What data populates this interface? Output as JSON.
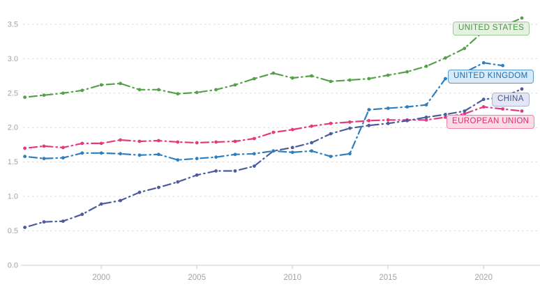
{
  "chart_data": {
    "type": "line",
    "x": [
      1996,
      1997,
      1998,
      1999,
      2000,
      2001,
      2002,
      2003,
      2004,
      2005,
      2006,
      2007,
      2008,
      2009,
      2010,
      2011,
      2012,
      2013,
      2014,
      2015,
      2016,
      2017,
      2018,
      2019,
      2020,
      2021,
      2022
    ],
    "series": [
      {
        "name": "United States",
        "label": "UNITED STATES",
        "color": "#55a049",
        "label_text_color": "#4a9447",
        "label_bg": "#e6f1e2",
        "label_border": "#9cc899",
        "values": [
          2.44,
          2.47,
          2.5,
          2.54,
          2.62,
          2.64,
          2.55,
          2.55,
          2.49,
          2.51,
          2.55,
          2.62,
          2.71,
          2.79,
          2.72,
          2.75,
          2.67,
          2.69,
          2.71,
          2.76,
          2.81,
          2.89,
          3.01,
          3.15,
          3.4,
          3.47,
          3.59
        ]
      },
      {
        "name": "United Kingdom",
        "label": "UNITED KINGDOM",
        "color": "#2f7ebe",
        "label_text_color": "#1f6dad",
        "label_bg": "#d8e9f7",
        "label_border": "#5599d2",
        "values": [
          1.58,
          1.55,
          1.56,
          1.63,
          1.63,
          1.62,
          1.6,
          1.61,
          1.53,
          1.55,
          1.57,
          1.61,
          1.62,
          1.66,
          1.64,
          1.66,
          1.58,
          1.62,
          2.26,
          2.28,
          2.3,
          2.33,
          2.71,
          2.8,
          2.94,
          2.9,
          null
        ]
      },
      {
        "name": "China",
        "label": "CHINA",
        "color": "#4b5c9e",
        "label_text_color": "#42508d",
        "label_bg": "#e4e7f3",
        "label_border": "#a9b2d8",
        "values": [
          0.55,
          0.63,
          0.64,
          0.74,
          0.89,
          0.94,
          1.06,
          1.13,
          1.21,
          1.31,
          1.37,
          1.37,
          1.44,
          1.66,
          1.71,
          1.78,
          1.91,
          1.99,
          2.03,
          2.06,
          2.1,
          2.15,
          2.19,
          2.24,
          2.41,
          2.44,
          2.56
        ]
      },
      {
        "name": "European Union",
        "label": "EUROPEAN UNION",
        "color": "#e23a7d",
        "label_text_color": "#da2e6d",
        "label_bg": "#fbdbe8",
        "label_border": "#ee82a8",
        "values": [
          1.7,
          1.73,
          1.71,
          1.77,
          1.77,
          1.82,
          1.8,
          1.81,
          1.79,
          1.78,
          1.79,
          1.8,
          1.84,
          1.93,
          1.97,
          2.02,
          2.06,
          2.08,
          2.1,
          2.11,
          2.11,
          2.11,
          2.15,
          2.2,
          2.3,
          2.27,
          2.24
        ]
      }
    ],
    "xlim": [
      1996,
      2022
    ],
    "ylim": [
      0.0,
      3.5
    ],
    "x_tick_values": [
      2000,
      2005,
      2010,
      2015,
      2020
    ],
    "x_tick_labels": [
      "2000",
      "2005",
      "2010",
      "2015",
      "2020"
    ],
    "y_tick_values": [
      0.0,
      0.5,
      1.0,
      1.5,
      2.0,
      2.5,
      3.0,
      3.5
    ],
    "y_tick_labels": [
      "0.0",
      "0.5",
      "1.0",
      "1.5",
      "2.0",
      "2.5",
      "3.0",
      "3.5"
    ],
    "grid": "horizontal-dashed",
    "legend_position": "end-of-line labels, right side",
    "line_style": "dash-dot with point markers",
    "colors": {
      "gridline": "#d9d9d9",
      "baseline": "#cfdbe6",
      "tick": "#c8c8c8",
      "tick_label": "#a3a3a3"
    }
  },
  "legend": {
    "items": [
      {
        "label": "UNITED STATES"
      },
      {
        "label": "UNITED KINGDOM"
      },
      {
        "label": "CHINA"
      },
      {
        "label": "EUROPEAN UNION"
      }
    ]
  }
}
